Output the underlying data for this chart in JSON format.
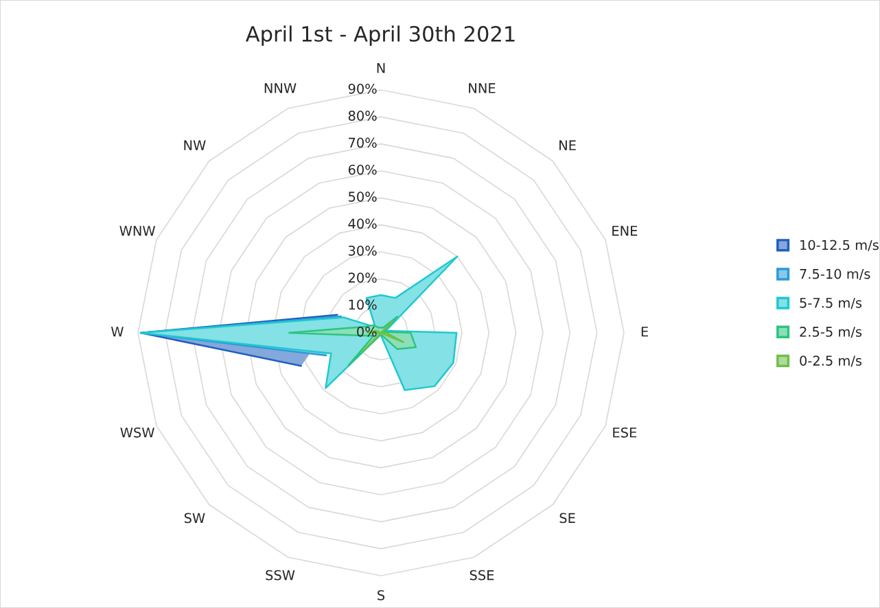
{
  "chart_data": {
    "type": "radar",
    "title": "April 1st - April 30th 2021",
    "categories": [
      "N",
      "NNE",
      "NE",
      "ENE",
      "E",
      "ESE",
      "SE",
      "SSE",
      "S",
      "SSW",
      "SW",
      "WSW",
      "W",
      "WNW",
      "NW",
      "NNW"
    ],
    "series": [
      {
        "name": "10-12.5 m/s",
        "color": "#1f5fc0",
        "values": [
          null,
          null,
          null,
          null,
          null,
          null,
          null,
          null,
          null,
          null,
          null,
          32,
          89,
          17.5,
          null,
          null
        ]
      },
      {
        "name": "7.5-10 m/s",
        "color": "#2a9bd8",
        "values": [
          null,
          null,
          null,
          null,
          null,
          null,
          null,
          null,
          null,
          null,
          null,
          22,
          89,
          16,
          null,
          null
        ]
      },
      {
        "name": "5-7.5 m/s",
        "color": "#1fc8d0",
        "values": [
          14,
          14,
          40,
          2,
          28,
          29,
          28,
          23,
          1,
          1,
          29,
          20,
          89,
          15,
          3,
          14
        ]
      },
      {
        "name": "2.5-5 m/s",
        "color": "#2cc47f",
        "values": [
          2,
          2,
          8.5,
          1,
          11,
          14,
          8.5,
          1,
          1,
          1,
          17,
          3,
          34,
          6,
          4,
          2
        ]
      },
      {
        "name": "0-2.5 m/s",
        "color": "#6cc04a",
        "values": [
          0,
          0,
          6,
          0,
          2,
          9,
          0,
          0,
          0,
          0,
          10,
          0,
          5,
          2,
          0,
          0
        ]
      }
    ],
    "ylim": [
      0,
      90
    ],
    "yticks": [
      {
        "value": 0,
        "label": "0%"
      },
      {
        "value": 10,
        "label": "10%"
      },
      {
        "value": 20,
        "label": "20%"
      },
      {
        "value": 30,
        "label": "30%"
      },
      {
        "value": 40,
        "label": "40%"
      },
      {
        "value": 50,
        "label": "50%"
      },
      {
        "value": 60,
        "label": "60%"
      },
      {
        "value": 70,
        "label": "70%"
      },
      {
        "value": 80,
        "label": "80%"
      },
      {
        "value": 90,
        "label": "90%"
      }
    ],
    "grid": true,
    "legend": "right"
  }
}
